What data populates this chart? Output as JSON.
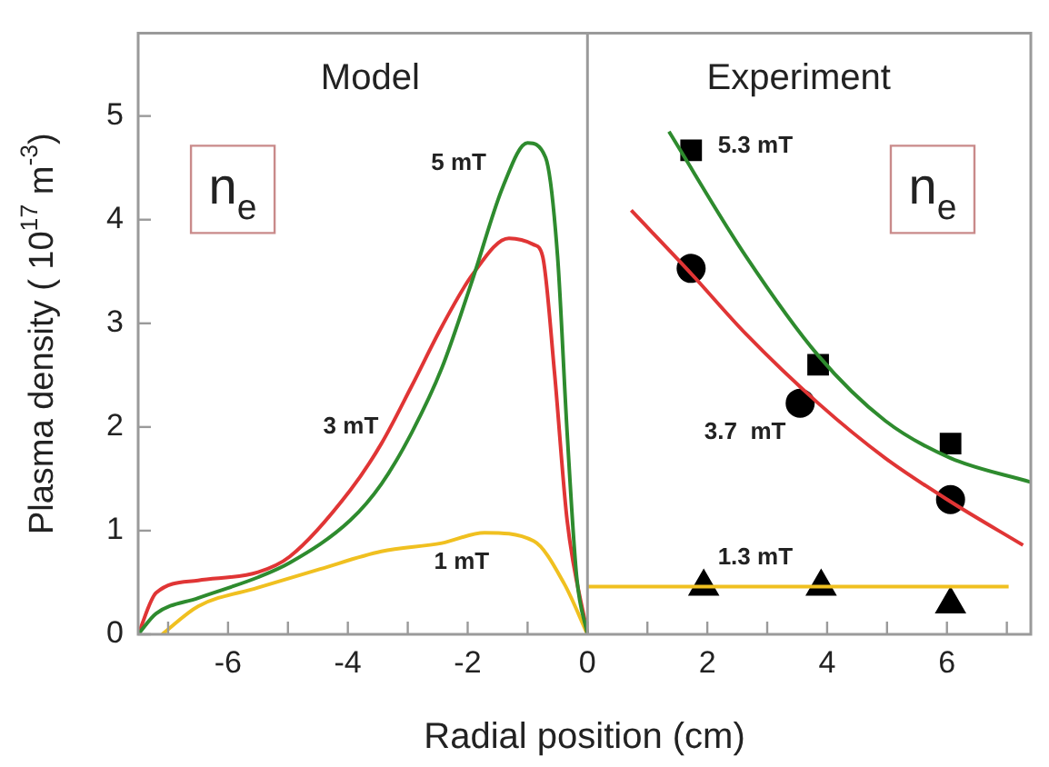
{
  "chart_data": {
    "type": "line",
    "xlabel": "Radial position (cm)",
    "ylabel": "Plasma density ( 10$^{17}$ m$^{-3}$)",
    "xlim": [
      -7.5,
      7.4
    ],
    "ylim": [
      0,
      5.8
    ],
    "xticks": [
      {
        "value": -7,
        "label": null
      },
      -6,
      {
        "value": -5,
        "label": null
      },
      -4,
      {
        "value": -3,
        "label": null
      },
      -2,
      {
        "value": -1,
        "label": null
      },
      0,
      {
        "value": 1,
        "label": null
      },
      2,
      {
        "value": 3,
        "label": null
      },
      4,
      {
        "value": 5,
        "label": null
      },
      6,
      {
        "value": 7,
        "label": null
      }
    ],
    "yticks": [
      0,
      1,
      2,
      3,
      4,
      5
    ],
    "grid": false,
    "legend": false,
    "ref_lines": [
      {
        "axis": "x",
        "value": 0,
        "color": "#9a9a9a"
      }
    ],
    "series": [
      {
        "type": "line",
        "name": "5 mT",
        "color": "#2e8b2e",
        "marker": "none",
        "x": [
          -7.5,
          -7.2,
          -6.5,
          -5.5,
          -4.97,
          -3.96,
          -3.44,
          -2.93,
          -2.43,
          -1.92,
          -1.41,
          -1.0,
          -0.7,
          -0.5,
          -0.34,
          -0.18,
          0
        ],
        "values": [
          0,
          0.2,
          0.35,
          0.55,
          0.69,
          1.1,
          1.45,
          1.95,
          2.57,
          3.42,
          4.32,
          4.74,
          4.6,
          3.65,
          1.95,
          0.55,
          0
        ]
      },
      {
        "type": "line",
        "name": "3 mT",
        "color": "#e03535",
        "marker": "none",
        "x": [
          -7.5,
          -7.2,
          -6.5,
          -5.5,
          -4.97,
          -3.96,
          -3.44,
          -2.93,
          -2.43,
          -1.92,
          -1.31,
          -0.9,
          -0.75,
          -0.55,
          -0.34,
          0
        ],
        "values": [
          0,
          0.4,
          0.52,
          0.6,
          0.75,
          1.39,
          1.84,
          2.4,
          2.97,
          3.47,
          3.82,
          3.76,
          3.65,
          2.52,
          1.1,
          0
        ]
      },
      {
        "type": "line",
        "name": "1 mT",
        "color": "#f0c020",
        "marker": "none",
        "x": [
          -7.1,
          -6.5,
          -5.5,
          -4.46,
          -3.44,
          -2.43,
          -1.72,
          -0.9,
          -0.39,
          0
        ],
        "values": [
          0,
          0.27,
          0.45,
          0.63,
          0.8,
          0.88,
          0.98,
          0.9,
          0.49,
          0
        ]
      },
      {
        "type": "line",
        "color": "#2e8b2e",
        "marker": "none",
        "x": [
          1.36,
          2.64,
          3.85,
          4.97,
          6.06,
          7.39
        ],
        "values": [
          4.85,
          3.65,
          2.69,
          2.06,
          1.7,
          1.47
        ]
      },
      {
        "type": "line",
        "color": "#e03535",
        "marker": "none",
        "x": [
          0.73,
          1.73,
          2.64,
          3.85,
          4.97,
          6.06,
          7.27
        ],
        "values": [
          4.09,
          3.48,
          2.9,
          2.23,
          1.7,
          1.28,
          0.86
        ]
      },
      {
        "type": "line",
        "color": "#f0c020",
        "marker": "none",
        "x": [
          0,
          7.03
        ],
        "values": [
          0.46,
          0.46
        ]
      },
      {
        "type": "scatter",
        "name": "5.3 mT",
        "color": "#000000",
        "marker": "square",
        "x": [
          1.73,
          3.85,
          6.06
        ],
        "values": [
          4.67,
          2.6,
          1.84
        ]
      },
      {
        "type": "scatter",
        "name": "3.7  mT",
        "color": "#000000",
        "marker": "circle",
        "x": [
          1.73,
          3.55,
          6.06
        ],
        "values": [
          3.53,
          2.23,
          1.3
        ]
      },
      {
        "type": "scatter",
        "name": "1.3 mT",
        "color": "#000000",
        "marker": "triangle",
        "x": [
          1.94,
          3.9,
          6.06
        ],
        "values": [
          0.46,
          0.46,
          0.29
        ]
      }
    ],
    "annotations": [
      "Model",
      "Experiment",
      "n$_{e}$",
      "n$_{e}$"
    ]
  }
}
